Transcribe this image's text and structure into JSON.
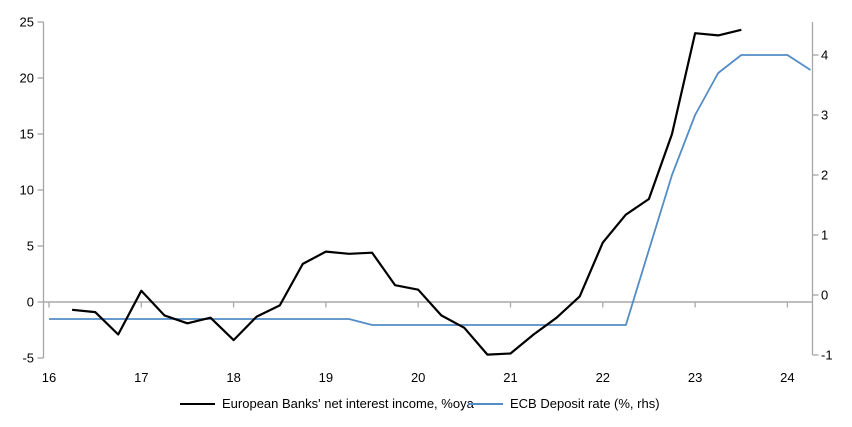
{
  "page": {
    "background": "#ffffff"
  },
  "chart": {
    "colors": {
      "nii_line": "#000000",
      "ecb_line": "#538CC6",
      "axis": "#A6A6A6",
      "zero_line": "#A9A9A9",
      "label_text": "#000000"
    }
  },
  "chart_data": {
    "type": "line",
    "title": "",
    "grid": "zero-line-only",
    "legend_position": "bottom",
    "x_axis": {
      "tick_labels": [
        "16",
        "17",
        "18",
        "19",
        "20",
        "21",
        "22",
        "23",
        "24"
      ],
      "range": [
        16,
        24.67
      ],
      "unit": "year (20xx)"
    },
    "left_axis": {
      "ticks": [
        25,
        20,
        15,
        10,
        5,
        0,
        -5
      ],
      "range": [
        -5,
        25
      ],
      "side": "left"
    },
    "right_axis": {
      "ticks": [
        4,
        3,
        2,
        1,
        0,
        -1
      ],
      "range": [
        -1,
        4.33
      ],
      "side": "right"
    },
    "series": [
      {
        "name": "European Banks' net interest income, %oya",
        "axis": "left",
        "color_key": "nii_line",
        "stroke_width": 2.2,
        "x": [
          16.25,
          16.5,
          16.75,
          17.0,
          17.25,
          17.5,
          17.75,
          18.0,
          18.25,
          18.5,
          18.75,
          19.0,
          19.25,
          19.5,
          19.75,
          20.0,
          20.25,
          20.5,
          20.75,
          21.0,
          21.25,
          21.5,
          21.75,
          22.0,
          22.25,
          22.5,
          22.75,
          23.0,
          23.25,
          23.5
        ],
        "values": [
          -0.7,
          -0.9,
          -2.9,
          1.0,
          -1.2,
          -1.9,
          -1.4,
          -3.4,
          -1.3,
          -0.3,
          3.4,
          4.5,
          4.3,
          4.4,
          1.5,
          1.1,
          -1.2,
          -2.3,
          -4.7,
          -4.6,
          -2.9,
          -1.4,
          0.5,
          5.3,
          7.8,
          9.2,
          15.0,
          24.0,
          23.8,
          24.3
        ]
      },
      {
        "name": "ECB Deposit rate (%, rhs)",
        "axis": "right",
        "color_key": "ecb_line",
        "stroke_width": 1.8,
        "x": [
          16.0,
          19.25,
          19.5,
          22.25,
          22.5,
          22.75,
          23.0,
          23.25,
          23.5,
          24.0,
          24.25
        ],
        "values": [
          -0.4,
          -0.4,
          -0.5,
          -0.5,
          0.75,
          2.0,
          3.0,
          3.7,
          4.0,
          4.0,
          3.75
        ]
      }
    ]
  }
}
